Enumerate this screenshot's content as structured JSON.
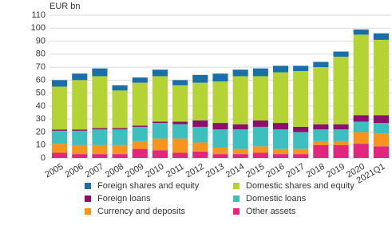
{
  "chart_data": {
    "type": "stacked-bar",
    "y_label": "EUR bn",
    "categories": [
      "2005",
      "2006",
      "2007",
      "2008",
      "2009",
      "2010",
      "2011",
      "2012",
      "2013",
      "2014",
      "2015",
      "2016",
      "2017",
      "2018",
      "2019",
      "2020",
      "2021Q1"
    ],
    "series": [
      {
        "name": "Other assets",
        "color": "#e0267d",
        "values": [
          4,
          3,
          3,
          3,
          7,
          6,
          4,
          5,
          3,
          3,
          4,
          3,
          3,
          10,
          10,
          11,
          9
        ]
      },
      {
        "name": "Currency and deposits",
        "color": "#f7941d",
        "values": [
          7,
          7,
          7,
          7,
          6,
          9,
          11,
          7,
          5,
          4,
          5,
          4,
          4,
          3,
          3,
          9,
          10
        ]
      },
      {
        "name": "Domestic loans",
        "color": "#3dbfbf",
        "values": [
          10,
          11,
          12,
          12,
          11,
          12,
          11,
          12,
          14,
          15,
          15,
          15,
          13,
          9,
          9,
          8,
          8
        ]
      },
      {
        "name": "Foreign loans",
        "color": "#8c0f6e",
        "values": [
          1,
          1,
          1,
          1,
          1,
          1,
          2,
          5,
          5,
          4,
          5,
          5,
          4,
          4,
          4,
          5,
          6
        ]
      },
      {
        "name": "Domestic shares and equity",
        "color": "#b5d334",
        "values": [
          33,
          38,
          40,
          29,
          33,
          35,
          28,
          29,
          32,
          37,
          34,
          39,
          43,
          44,
          52,
          62,
          58
        ]
      },
      {
        "name": "Foreign shares and equity",
        "color": "#1a6fa8",
        "values": [
          5,
          5,
          6,
          4,
          4,
          5,
          4,
          6,
          6,
          5,
          6,
          5,
          4,
          4,
          4,
          4,
          5
        ]
      }
    ],
    "ylim": [
      0,
      110
    ],
    "yticks": [
      0,
      10,
      20,
      30,
      40,
      50,
      60,
      70,
      80,
      90,
      100,
      110
    ],
    "grid": true
  }
}
